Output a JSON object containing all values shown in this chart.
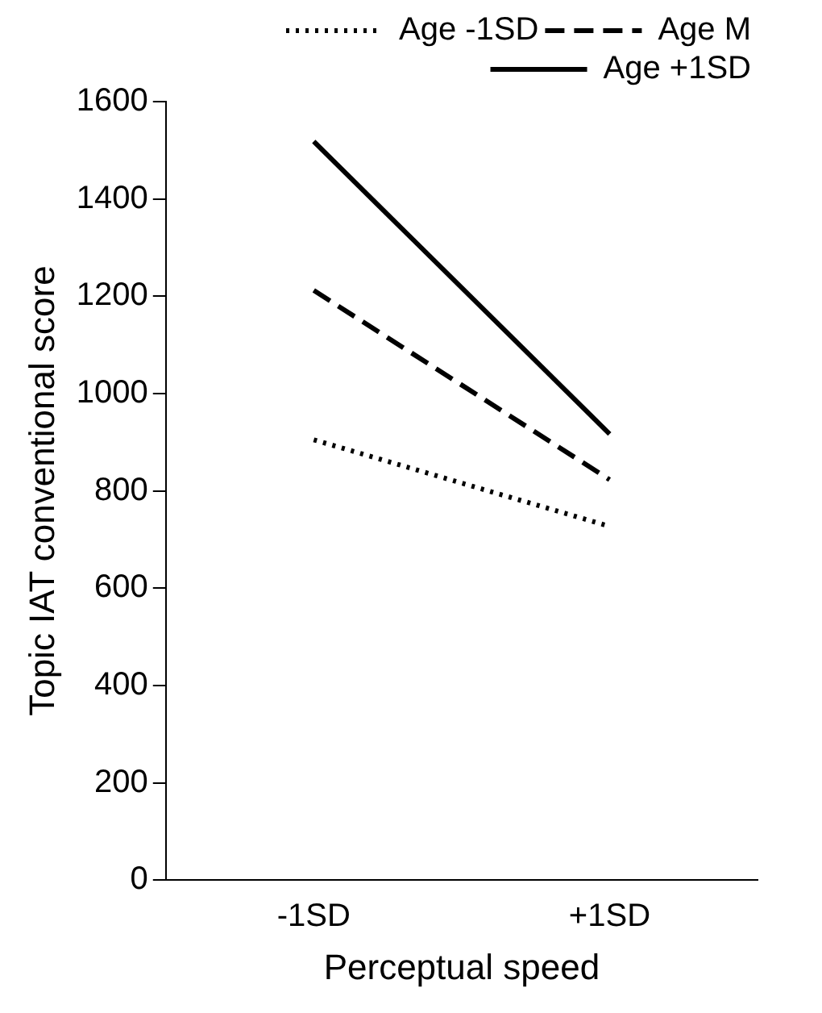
{
  "chart_data": {
    "type": "line",
    "xlabel": "Perceptual speed",
    "ylabel": "Topic IAT conventional score",
    "categories": [
      "-1SD",
      "+1SD"
    ],
    "series": [
      {
        "name": "Age -1SD",
        "color": "#000000",
        "line_style": "dotted",
        "values": [
          905,
          727
        ]
      },
      {
        "name": "Age M",
        "color": "#000000",
        "line_style": "dashed",
        "values": [
          1212,
          823
        ]
      },
      {
        "name": "Age +1SD",
        "color": "#000000",
        "line_style": "solid",
        "values": [
          1518,
          917
        ]
      }
    ],
    "ylim": [
      0,
      1600
    ],
    "yticks": [
      0,
      200,
      400,
      600,
      800,
      1000,
      1200,
      1400,
      1600
    ],
    "grid": false,
    "legend": "top right",
    "marker": "none"
  }
}
